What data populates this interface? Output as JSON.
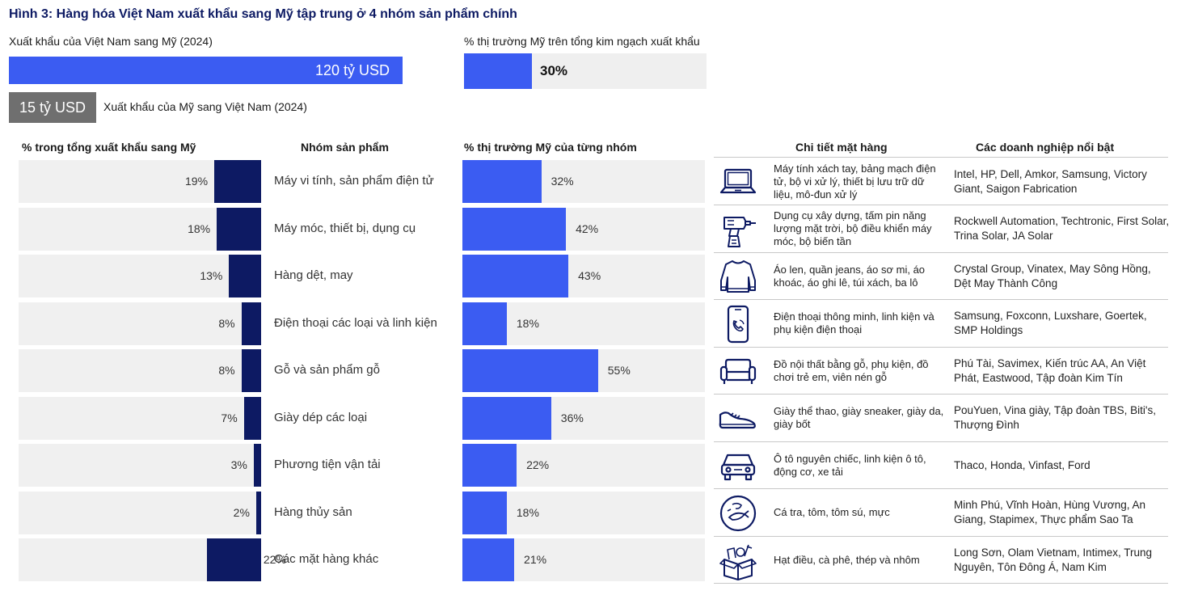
{
  "title": "Hình 3: Hàng hóa Việt Nam xuất khẩu sang Mỹ tập trung ở 4 nhóm sản phẩm chính",
  "summary": {
    "vn_export_label": "Xuất khẩu của Việt Nam sang Mỹ (2024)",
    "vn_export_value": "120 tỷ USD",
    "us_export_value": "15 tỷ USD",
    "us_export_label": "Xuất khẩu của Mỹ sang Việt Nam (2024)",
    "share_label": "% thị trường Mỹ trên tổng kim ngạch xuất khẩu",
    "share_value": "30%",
    "share_fraction": 0.3
  },
  "headers": {
    "left": "% trong tổng xuất khẩu sang Mỹ",
    "group": "Nhóm sản phẩm",
    "right": "% thị trường Mỹ của từng nhóm",
    "detail": "Chi tiết mặt hàng",
    "companies": "Các doanh nghiệp nổi bật"
  },
  "chart_data": {
    "type": "bar",
    "categories": [
      "Máy vi tính, sản phẩm điện tử",
      "Máy móc, thiết bị, dụng cụ",
      "Hàng dệt, may",
      "Điện thoại các loại và linh kiện",
      "Gỗ và sản phẩm gỗ",
      "Giày dép các loại",
      "Phương tiện vận tải",
      "Hàng thủy sản",
      "Các mặt hàng khác"
    ],
    "series": [
      {
        "name": "% trong tổng xuất khẩu sang Mỹ",
        "values": [
          19,
          18,
          13,
          8,
          8,
          7,
          3,
          2,
          22
        ],
        "labels": [
          "19%",
          "18%",
          "13%",
          "8%",
          "8%",
          "7%",
          "3%",
          "2%",
          "22%"
        ]
      },
      {
        "name": "% thị trường Mỹ của từng nhóm",
        "values": [
          32,
          42,
          43,
          18,
          55,
          36,
          22,
          18,
          21
        ],
        "labels": [
          "32%",
          "42%",
          "43%",
          "18%",
          "55%",
          "36%",
          "22%",
          "18%",
          "21%"
        ]
      }
    ]
  },
  "rows": [
    {
      "icon": "laptop-icon",
      "detail": "Máy tính xách tay, bảng mạch điện tử, bộ vi xử lý, thiết bị lưu trữ dữ liệu, mô-đun xử lý",
      "companies": "Intel, HP, Dell, Amkor, Samsung, Victory Giant, Saigon Fabrication"
    },
    {
      "icon": "drill-icon",
      "detail": "Dụng cụ xây dựng, tấm pin năng lượng mặt trời, bộ điều khiển máy móc, bộ biến tần",
      "companies": "Rockwell Automation, Techtronic, First Solar, Trina Solar, JA Solar"
    },
    {
      "icon": "sweater-icon",
      "detail": "Áo len, quần jeans, áo sơ mi, áo khoác, áo ghi lê, túi xách, ba lô",
      "companies": "Crystal Group, Vinatex, May Sông Hồng, Dệt May Thành Công"
    },
    {
      "icon": "smartphone-icon",
      "detail": "Điện thoại thông minh, linh kiện và phụ kiện điện thoại",
      "companies": "Samsung, Foxconn, Luxshare, Goertek, SMP Holdings"
    },
    {
      "icon": "sofa-icon",
      "detail": "Đồ nội thất bằng gỗ, phụ kiện, đồ chơi trẻ em, viên nén gỗ",
      "companies": "Phú Tài, Savimex, Kiến trúc AA, An Việt Phát, Eastwood, Tập đoàn Kim Tín"
    },
    {
      "icon": "shoe-icon",
      "detail": "Giày thể thao, giày sneaker, giày da, giày bốt",
      "companies": "PouYuen, Vina giày, Tập đoàn TBS, Biti's, Thượng Đình"
    },
    {
      "icon": "car-icon",
      "detail": "Ô tô nguyên chiếc, linh kiện ô tô, động cơ, xe tải",
      "companies": "Thaco, Honda, Vinfast, Ford"
    },
    {
      "icon": "seafood-icon",
      "detail": "Cá tra, tôm, tôm sú, mực",
      "companies": "Minh Phú, Vĩnh Hoàn, Hùng Vương, An Giang, Stapimex, Thực phẩm Sao Ta"
    },
    {
      "icon": "box-goods-icon",
      "detail": "Hạt điều, cà phê, thép và nhôm",
      "companies": "Long Sơn, Olam Vietnam, Intimex, Trung Nguyên, Tôn Đông Á, Nam Kim"
    }
  ]
}
